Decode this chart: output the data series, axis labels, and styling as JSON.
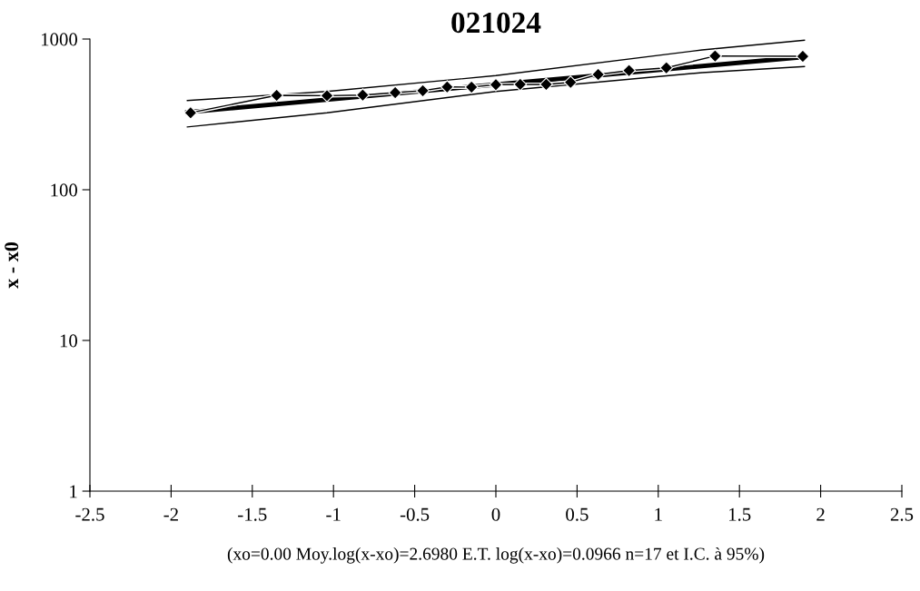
{
  "chart_data": {
    "type": "line",
    "title": "021024",
    "ylabel": "x - x0",
    "xlabel": "(xo=0.00 Moy.log(x-xo)=2.6980 E.T. log(x-xo)=0.0966 n=17 et I.C. à 95%)",
    "log": "y",
    "xlim": [
      -2.5,
      2.5
    ],
    "xticks": [
      -2.5,
      -2,
      -1.5,
      -1,
      -0.5,
      0,
      0.5,
      1,
      1.5,
      2,
      2.5
    ],
    "ylim": [
      1,
      1000
    ],
    "yticks": [
      1,
      10,
      100,
      1000
    ],
    "grid": false,
    "legend": false,
    "series": [
      {
        "color": "#000000",
        "marker": "none",
        "line_style": "solid",
        "x": [
          -1.9,
          -1.04,
          0,
          1.27,
          1.9
        ],
        "values": [
          391,
          449,
          572,
          847,
          982
        ]
      },
      {
        "color": "#000000",
        "marker": "none",
        "line_style": "solid",
        "x": [
          -1.9,
          -1.04,
          0,
          1.27,
          1.9
        ],
        "values": [
          261,
          324,
          449,
          599,
          657
        ]
      },
      {
        "color": "#000000",
        "marker": "diamond",
        "line_style": "solid",
        "x": [
          -1.88,
          -1.35,
          -1.04,
          -0.82,
          -0.62,
          -0.45,
          -0.3,
          -0.15,
          0,
          0.15,
          0.31,
          0.46,
          0.63,
          0.82,
          1.05,
          1.35,
          1.89
        ],
        "values": [
          324,
          423,
          421,
          425,
          441,
          454,
          481,
          480,
          498,
          500,
          500,
          516,
          582,
          618,
          644,
          772,
          768
        ]
      },
      {
        "color": "#000000",
        "marker": "none",
        "line_style": "solid",
        "x": [
          -1.9,
          1.9
        ],
        "values": [
          327,
          761
        ]
      }
    ]
  }
}
